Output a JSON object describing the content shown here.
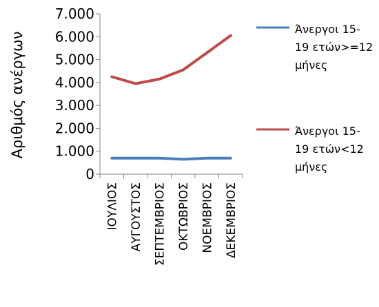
{
  "chart_data": {
    "type": "line",
    "categories": [
      "ΙΟΥΛΙΟΣ",
      "ΑΥΓΟΥΣΤΟΣ",
      "ΣΕΠΤΕΜΒΡΙΟΣ",
      "ΟΚΤΩΒΡΙΟΣ",
      "ΝΟΕΜΒΡΙΟΣ",
      "ΔΕΚΕΜΒΡΙΟΣ"
    ],
    "series": [
      {
        "name_lines": [
          "Άνεργοι 15-",
          "19 ετών>=12",
          "μήνες"
        ],
        "color": "#4a7ebb",
        "values": [
          700,
          700,
          700,
          650,
          700,
          700
        ]
      },
      {
        "name_lines": [
          "Άνεργοι 15-",
          "19 ετών<12",
          "μήνες"
        ],
        "color": "#be4b48",
        "values": [
          4250,
          3950,
          4150,
          4550,
          5300,
          6050
        ]
      }
    ],
    "ylabel": "Αριθμός ανέργων",
    "ylim": [
      0,
      7000
    ],
    "yticks": [
      0,
      1000,
      2000,
      3000,
      4000,
      5000,
      6000,
      7000
    ],
    "ytick_labels": [
      "0",
      "1.000",
      "2.000",
      "3.000",
      "4.000",
      "5.000",
      "6.000",
      "7.000"
    ],
    "grid": false,
    "legend": "right"
  }
}
